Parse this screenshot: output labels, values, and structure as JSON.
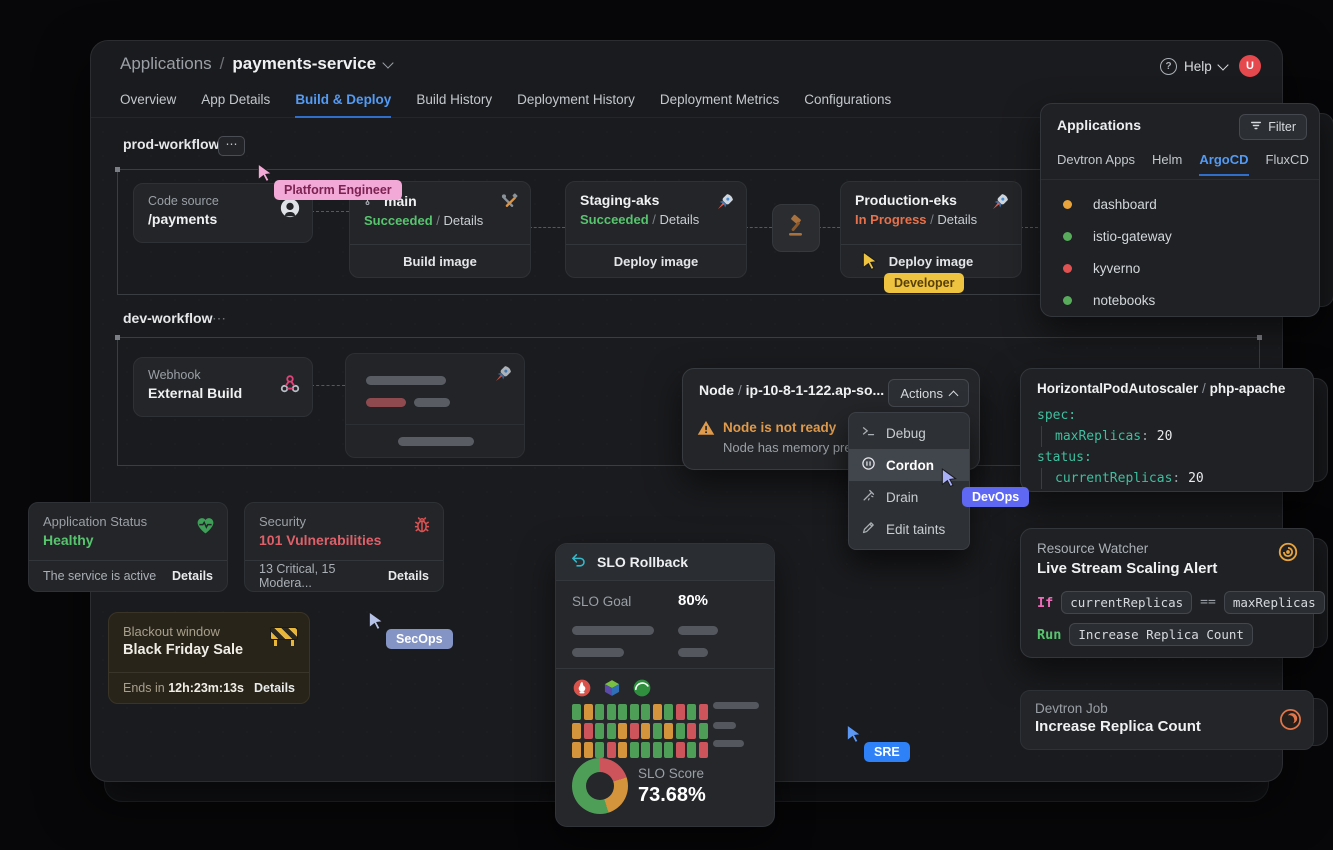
{
  "window": {
    "breadcrumb": {
      "root": "Applications",
      "sep": "/",
      "current": "payments-service"
    },
    "help_label": "Help",
    "avatar_initial": "U",
    "tabs": [
      "Overview",
      "App Details",
      "Build & Deploy",
      "Build History",
      "Deployment History",
      "Deployment Metrics",
      "Configurations"
    ],
    "active_tab": "Build & Deploy"
  },
  "prod_workflow": {
    "title": "prod-workflow",
    "menu_glyph": "⋯",
    "code_source": {
      "label": "Code source",
      "value": "/payments"
    },
    "build": {
      "title": "main",
      "status": "Succeeded",
      "sep": "/",
      "link": "Details",
      "action": "Build image"
    },
    "staging": {
      "title": "Staging-aks",
      "status": "Succeeded",
      "sep": "/",
      "link": "Details",
      "action": "Deploy image"
    },
    "production": {
      "title": "Production-eks",
      "status": "In Progress",
      "sep": "/",
      "link": "Details",
      "action": "Deploy image"
    }
  },
  "dev_workflow": {
    "title": "dev-workflow",
    "menu_glyph": "⋯",
    "webhook": {
      "label": "Webhook",
      "value": "External Build"
    }
  },
  "apps_panel": {
    "title": "Applications",
    "filter_label": "Filter",
    "tabs": [
      "Devtron Apps",
      "Helm",
      "ArgoCD",
      "FluxCD"
    ],
    "active_tab": "ArgoCD",
    "items": [
      {
        "label": "dashboard",
        "color": "#e8a33d"
      },
      {
        "label": "istio-gateway",
        "color": "#57ab5a"
      },
      {
        "label": "kyverno",
        "color": "#e05252"
      },
      {
        "label": "notebooks",
        "color": "#57ab5a"
      }
    ]
  },
  "node_panel": {
    "kind": "Node",
    "sep": "/",
    "name": "ip-10-8-1-122.ap-so...",
    "actions_label": "Actions",
    "warning_title": "Node is not ready",
    "warning_sub": "Node has memory pre",
    "menu": [
      {
        "label": "Debug"
      },
      {
        "label": "Cordon"
      },
      {
        "label": "Drain"
      },
      {
        "label": "Edit taints"
      }
    ]
  },
  "hpa_panel": {
    "title_kind": "HorizontalPodAutoscaler",
    "sep": "/",
    "title_name": "php-apache",
    "yaml": {
      "l1": "spec:",
      "l2_key": "maxReplicas",
      "l2_colon": ": ",
      "l2_val": "20",
      "l3": "status:",
      "l4_key": "currentReplicas",
      "l4_colon": ": ",
      "l4_val": "20"
    }
  },
  "status_card": {
    "label": "Application Status",
    "value": "Healthy",
    "foot": "The service is active",
    "link": "Details"
  },
  "security_card": {
    "label": "Security",
    "value": "101 Vulnerabilities",
    "foot": "13 Critical, 15 Modera...",
    "link": "Details"
  },
  "blackout_card": {
    "label": "Blackout window",
    "value": "Black Friday Sale",
    "foot_prefix": "Ends in",
    "foot_value": "12h:23m:13s",
    "link": "Details"
  },
  "slo_card": {
    "title": "SLO Rollback",
    "goal_label": "SLO Goal",
    "goal_value": "80%",
    "score_label": "SLO Score",
    "score_value": "73.68%",
    "heatmap": {
      "colors": {
        "g": "#4f9e58",
        "o": "#d3943c",
        "r": "#cc545a"
      },
      "rows": [
        [
          "g",
          "o",
          "g",
          "g",
          "g",
          "g",
          "g",
          "o",
          "g",
          "r",
          "g",
          "r"
        ],
        [
          "o",
          "r",
          "g",
          "g",
          "o",
          "r",
          "o",
          "g",
          "o",
          "g",
          "r",
          "g"
        ],
        [
          "o",
          "o",
          "g",
          "r",
          "o",
          "g",
          "g",
          "g",
          "g",
          "r",
          "g",
          "r"
        ]
      ]
    },
    "donut": {
      "slices": [
        {
          "color": "#cc545a",
          "pct": 20
        },
        {
          "color": "#d3943c",
          "pct": 25
        },
        {
          "color": "#4f9e58",
          "pct": 55
        }
      ]
    }
  },
  "watcher_card": {
    "label": "Resource Watcher",
    "title": "Live Stream Scaling Alert",
    "if_kw": "If",
    "lhs": "currentReplicas",
    "op": "==",
    "rhs": "maxReplicas",
    "run_kw": "Run",
    "run_cmd": "Increase Replica Count"
  },
  "job_card": {
    "label": "Devtron Job",
    "title": "Increase Replica Count"
  },
  "personas": {
    "platform": {
      "label": "Platform Engineer",
      "bg": "#f2a9d8",
      "fg": "#7c2250"
    },
    "developer": {
      "label": "Developer",
      "bg": "#eec33f",
      "fg": "#57400a"
    },
    "devops": {
      "label": "DevOps",
      "bg": "#5e68f2",
      "fg": "#ffffff"
    },
    "secops": {
      "label": "SecOps",
      "bg": "#8494c4",
      "fg": "#ffffff"
    },
    "sre": {
      "label": "SRE",
      "bg": "#2f81f7",
      "fg": "#ffffff"
    }
  }
}
